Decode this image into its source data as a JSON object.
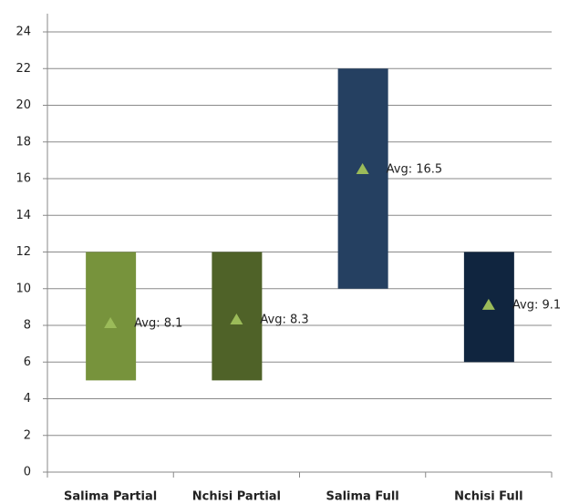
{
  "chart_data": {
    "type": "floating_bar",
    "categories": [
      "Salima Partial",
      "Nchisi Partial",
      "Salima Full",
      "Nchisi Full"
    ],
    "low": [
      5,
      5,
      10,
      6
    ],
    "high": [
      12,
      12,
      22,
      12
    ],
    "colors": [
      "#77933c",
      "#4f6228",
      "#254061",
      "#10253f"
    ],
    "values": [
      8.1,
      8.3,
      16.5,
      9.1
    ],
    "value_labels": [
      "Avg: 8.1",
      "Avg: 8.3",
      "Avg: 16.5",
      "Avg: 9.1"
    ],
    "marker_color": "#9bbb59",
    "ylim": [
      0,
      24
    ],
    "yticks": [
      0,
      2,
      4,
      6,
      8,
      10,
      12,
      14,
      16,
      18,
      20,
      22,
      24
    ],
    "grid": true
  }
}
